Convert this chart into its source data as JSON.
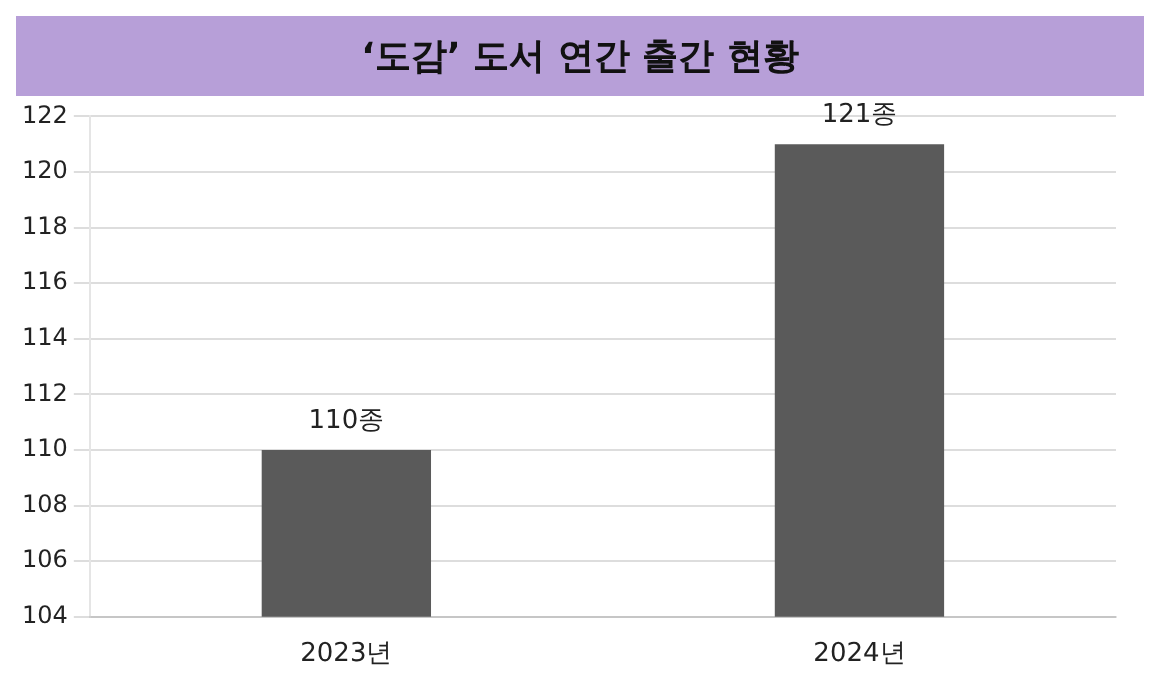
{
  "chart_data": {
    "type": "bar",
    "title": "‘도감’ 도서 연간 출간 현황",
    "categories": [
      "2023년",
      "2024년"
    ],
    "values": [
      110,
      121
    ],
    "color": "#5a5a5a",
    "value_labels": [
      "110종",
      "121종"
    ],
    "ylim": [
      104,
      122
    ],
    "yticks": [
      104,
      106,
      108,
      110,
      112,
      114,
      116,
      118,
      120,
      122
    ],
    "grid": "y"
  }
}
